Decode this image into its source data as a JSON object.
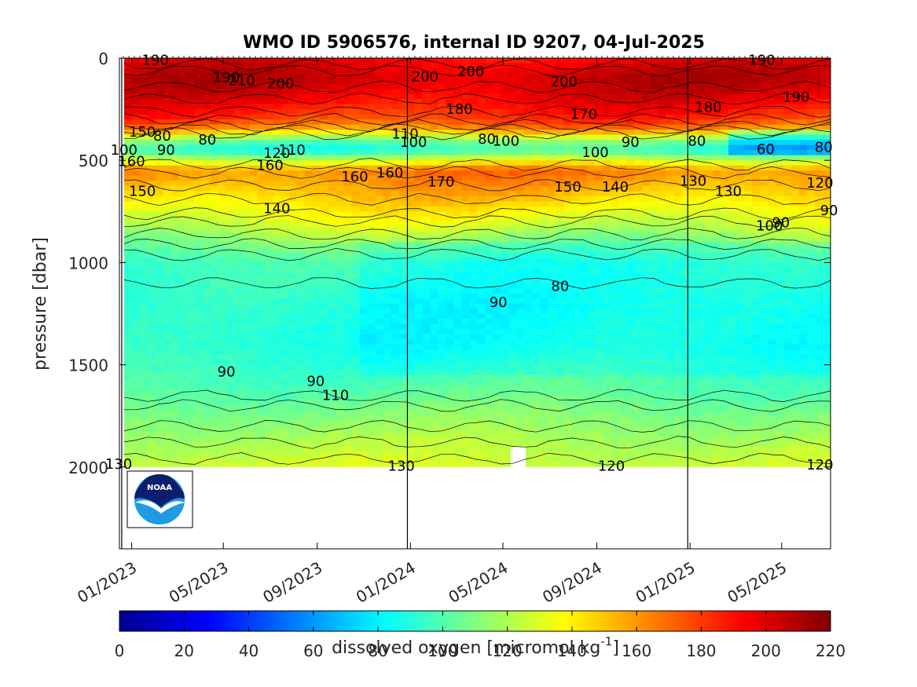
{
  "chart_data": {
    "type": "heatmap",
    "title": "WMO ID 5906576, internal ID 9207, 04-Jul-2025",
    "ylabel": "pressure [dbar]",
    "colorbar_label": "dissolved oxygen [micromol kg^{-1}]",
    "colorbar_label_main": "dissolved oxygen [micromol kg",
    "colorbar_label_sup": "-1",
    "colorbar_label_end": "]",
    "colormap": "jet",
    "clim": [
      0,
      220
    ],
    "colorbar_ticks": [
      "0",
      "20",
      "40",
      "60",
      "80",
      "100",
      "120",
      "140",
      "160",
      "180",
      "200",
      "220"
    ],
    "ylim": [
      0,
      2400
    ],
    "yaxis_reversed": true,
    "y_ticks": [
      "0",
      "500",
      "1000",
      "1500",
      "2000"
    ],
    "y_tick_values": [
      0,
      500,
      1000,
      1500,
      2000
    ],
    "x_ticks": [
      "01/2023",
      "05/2023",
      "09/2023",
      "01/2024",
      "05/2024",
      "09/2024",
      "01/2025",
      "05/2025"
    ],
    "x_tick_dates": [
      "2023-01-01",
      "2023-05-01",
      "2023-09-01",
      "2024-01-01",
      "2024-05-01",
      "2024-09-01",
      "2025-01-01",
      "2025-05-01"
    ],
    "xlim": [
      "2022-12-16",
      "2025-07-04"
    ],
    "data_range": [
      "2022-12-22",
      "2025-07-04"
    ],
    "year_boundaries": [
      "2022-12-19",
      "2023-12-28",
      "2024-12-29"
    ],
    "max_pressure": 2000,
    "contour_levels": [
      60,
      70,
      80,
      90,
      100,
      110,
      120,
      130,
      140,
      150,
      160,
      170,
      180,
      190,
      200,
      210
    ],
    "profile": {
      "pressure": [
        0,
        100,
        200,
        300,
        350,
        400,
        450,
        500,
        550,
        600,
        700,
        800,
        900,
        1000,
        1200,
        1400,
        1600,
        1800,
        1900,
        2000
      ],
      "oxygen": [
        195,
        205,
        196,
        180,
        160,
        110,
        90,
        130,
        165,
        160,
        145,
        130,
        110,
        95,
        90,
        90,
        100,
        115,
        122,
        128
      ]
    },
    "contour_labels": [
      {
        "text": "190",
        "date": "2023-02-01",
        "p": 10
      },
      {
        "text": "190",
        "date": "2023-05-05",
        "p": 95
      },
      {
        "text": "210",
        "date": "2023-05-25",
        "p": 110
      },
      {
        "text": "200",
        "date": "2023-07-15",
        "p": 125
      },
      {
        "text": "200",
        "date": "2024-01-20",
        "p": 90
      },
      {
        "text": "200",
        "date": "2024-03-20",
        "p": 65
      },
      {
        "text": "200",
        "date": "2024-07-20",
        "p": 115
      },
      {
        "text": "190",
        "date": "2025-04-05",
        "p": 10
      },
      {
        "text": "190",
        "date": "2025-05-20",
        "p": 190
      },
      {
        "text": "180",
        "date": "2024-03-05",
        "p": 250
      },
      {
        "text": "170",
        "date": "2024-08-15",
        "p": 275
      },
      {
        "text": "180",
        "date": "2025-01-25",
        "p": 240
      },
      {
        "text": "150",
        "date": "2023-01-15",
        "p": 360
      },
      {
        "text": "80",
        "date": "2023-02-10",
        "p": 380
      },
      {
        "text": "100",
        "date": "2022-12-22",
        "p": 450
      },
      {
        "text": "90",
        "date": "2023-02-15",
        "p": 450
      },
      {
        "text": "160",
        "date": "2023-01-01",
        "p": 505
      },
      {
        "text": "80",
        "date": "2023-04-10",
        "p": 400
      },
      {
        "text": "120",
        "date": "2023-07-10",
        "p": 465
      },
      {
        "text": "110",
        "date": "2023-07-30",
        "p": 450
      },
      {
        "text": "160",
        "date": "2023-07-01",
        "p": 525
      },
      {
        "text": "160",
        "date": "2023-10-20",
        "p": 580
      },
      {
        "text": "160",
        "date": "2023-12-05",
        "p": 560
      },
      {
        "text": "110",
        "date": "2023-12-25",
        "p": 370
      },
      {
        "text": "100",
        "date": "2024-01-05",
        "p": 410
      },
      {
        "text": "80",
        "date": "2024-04-10",
        "p": 395
      },
      {
        "text": "100",
        "date": "2024-05-05",
        "p": 405
      },
      {
        "text": "100",
        "date": "2024-08-30",
        "p": 460
      },
      {
        "text": "90",
        "date": "2024-10-15",
        "p": 410
      },
      {
        "text": "170",
        "date": "2024-02-10",
        "p": 605
      },
      {
        "text": "150",
        "date": "2024-07-25",
        "p": 630
      },
      {
        "text": "140",
        "date": "2024-09-25",
        "p": 630
      },
      {
        "text": "80",
        "date": "2025-01-10",
        "p": 405
      },
      {
        "text": "60",
        "date": "2025-04-10",
        "p": 445
      },
      {
        "text": "80",
        "date": "2025-06-25",
        "p": 435
      },
      {
        "text": "130",
        "date": "2025-01-05",
        "p": 600
      },
      {
        "text": "130",
        "date": "2025-02-20",
        "p": 650
      },
      {
        "text": "120",
        "date": "2025-06-20",
        "p": 610
      },
      {
        "text": "90",
        "date": "2025-07-02",
        "p": 745
      },
      {
        "text": "100",
        "date": "2025-04-15",
        "p": 820
      },
      {
        "text": "90",
        "date": "2025-04-30",
        "p": 805
      },
      {
        "text": "150",
        "date": "2023-01-15",
        "p": 650
      },
      {
        "text": "140",
        "date": "2023-07-10",
        "p": 735
      },
      {
        "text": "80",
        "date": "2024-07-15",
        "p": 1115
      },
      {
        "text": "90",
        "date": "2024-04-25",
        "p": 1195
      },
      {
        "text": "90",
        "date": "2023-05-05",
        "p": 1535
      },
      {
        "text": "90",
        "date": "2023-08-30",
        "p": 1580
      },
      {
        "text": "110",
        "date": "2023-09-25",
        "p": 1650
      },
      {
        "text": "130",
        "date": "2022-12-15",
        "p": 1985
      },
      {
        "text": "130",
        "date": "2023-12-20",
        "p": 1995
      },
      {
        "text": "120",
        "date": "2024-09-20",
        "p": 1995
      },
      {
        "text": "120",
        "date": "2025-06-20",
        "p": 1990
      }
    ]
  },
  "logo": {
    "text": "NOAA"
  }
}
